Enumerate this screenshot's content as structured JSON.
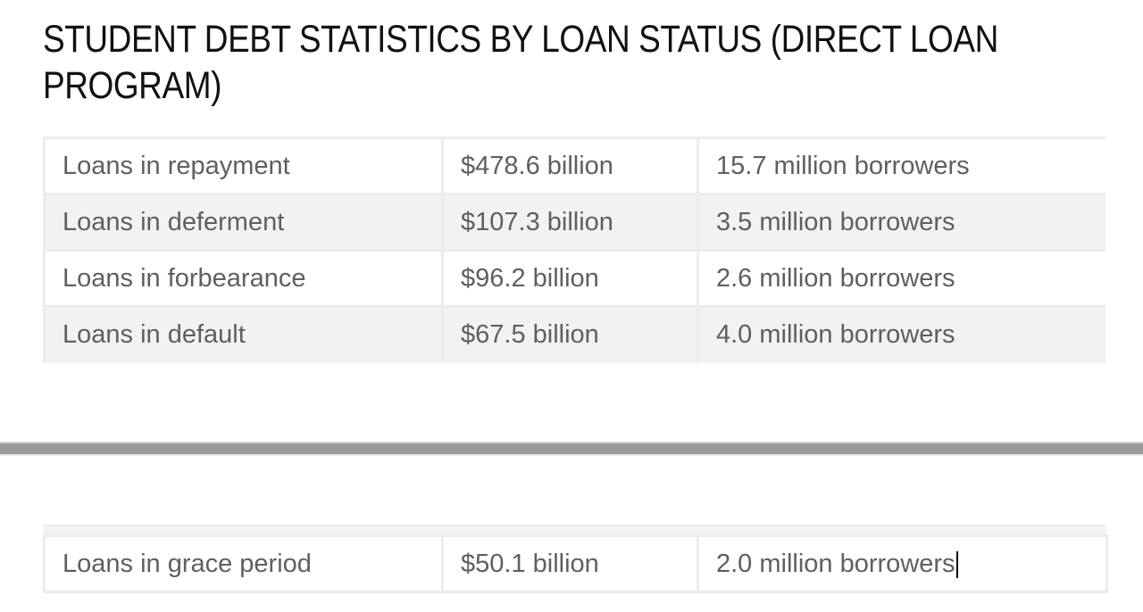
{
  "document": {
    "title": "STUDENT DEBT STATISTICS BY LOAN STATUS (DIRECT LOAN PROGRAM)"
  },
  "table": {
    "rows": [
      {
        "status": "Loans in repayment",
        "amount": "$478.6 billion",
        "borrowers": "15.7 million borrowers"
      },
      {
        "status": "Loans in deferment",
        "amount": "$107.3 billion",
        "borrowers": "3.5 million borrowers"
      },
      {
        "status": "Loans in forbearance",
        "amount": "$96.2 billion",
        "borrowers": "2.6 million borrowers"
      },
      {
        "status": "Loans in default",
        "amount": "$67.5 billion",
        "borrowers": "4.0 million borrowers"
      },
      {
        "status": "Loans in grace period",
        "amount": "$50.1 billion",
        "borrowers": "2.0 million borrowers"
      }
    ]
  },
  "colors": {
    "row_shaded": "#f3f2f3",
    "border": "#ececec",
    "text": "#5f5f5f",
    "page_break": "#9a9a9a"
  }
}
